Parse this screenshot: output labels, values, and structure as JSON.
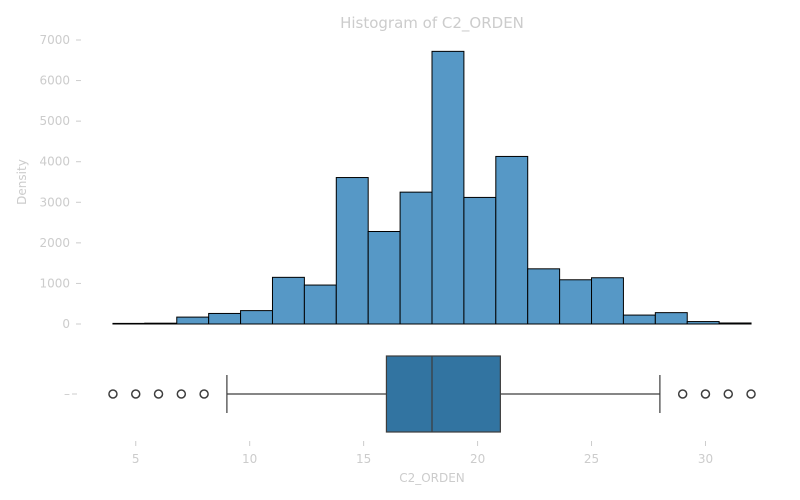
{
  "chart_data": [
    {
      "type": "bar",
      "title": "Histogram of C2_ORDEN",
      "xlabel": "",
      "ylabel": "Density",
      "ylim": [
        0,
        7000
      ],
      "yticks": [
        0,
        1000,
        2000,
        3000,
        4000,
        5000,
        6000,
        7000
      ],
      "bins": [
        {
          "x0": 4.0,
          "x1": 5.4,
          "value": 15
        },
        {
          "x0": 5.4,
          "x1": 6.8,
          "value": 20
        },
        {
          "x0": 6.8,
          "x1": 8.2,
          "value": 170
        },
        {
          "x0": 8.2,
          "x1": 9.6,
          "value": 260
        },
        {
          "x0": 9.6,
          "x1": 11.0,
          "value": 330
        },
        {
          "x0": 11.0,
          "x1": 12.4,
          "value": 1150
        },
        {
          "x0": 12.4,
          "x1": 13.8,
          "value": 960
        },
        {
          "x0": 13.8,
          "x1": 15.2,
          "value": 3610
        },
        {
          "x0": 15.2,
          "x1": 16.6,
          "value": 2280
        },
        {
          "x0": 16.6,
          "x1": 18.0,
          "value": 3250
        },
        {
          "x0": 18.0,
          "x1": 19.4,
          "value": 6720
        },
        {
          "x0": 19.4,
          "x1": 20.8,
          "value": 3120
        },
        {
          "x0": 20.8,
          "x1": 22.2,
          "value": 4130
        },
        {
          "x0": 22.2,
          "x1": 23.6,
          "value": 1360
        },
        {
          "x0": 23.6,
          "x1": 25.0,
          "value": 1090
        },
        {
          "x0": 25.0,
          "x1": 26.4,
          "value": 1140
        },
        {
          "x0": 26.4,
          "x1": 27.8,
          "value": 220
        },
        {
          "x0": 27.8,
          "x1": 29.2,
          "value": 280
        },
        {
          "x0": 29.2,
          "x1": 30.6,
          "value": 60
        },
        {
          "x0": 30.6,
          "x1": 32.0,
          "value": 25
        }
      ],
      "colors": {
        "bar": "#5698c6",
        "edge": "#000000",
        "text": "#cccccc"
      },
      "grid": false
    },
    {
      "type": "box",
      "xlabel": "C2_ORDEN",
      "xlim": [
        3.3,
        32.7
      ],
      "xticks": [
        5,
        10,
        15,
        20,
        25,
        30
      ],
      "ytick_label": "–",
      "whisker_low": 9,
      "q1": 16,
      "median": 18,
      "q3": 21,
      "whisker_high": 28,
      "outliers": [
        4,
        5,
        6,
        7,
        8,
        29,
        30,
        31,
        32
      ],
      "colors": {
        "box": "#3274a1",
        "line": "#3d3d3d",
        "text": "#cccccc"
      }
    }
  ]
}
